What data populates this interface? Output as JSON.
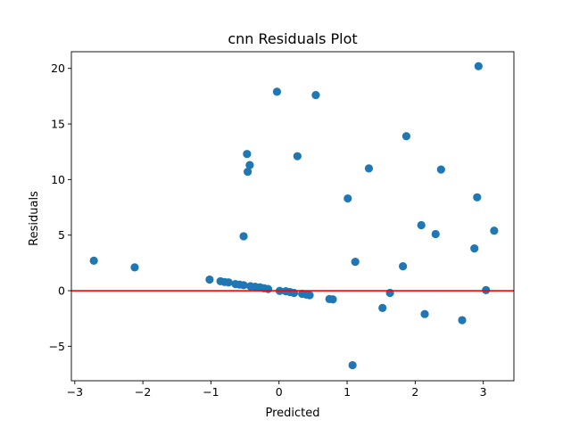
{
  "chart_data": {
    "type": "scatter",
    "title": "cnn Residuals Plot",
    "xlabel": "Predicted",
    "ylabel": "Residuals",
    "xlim": [
      -3.05,
      3.45
    ],
    "ylim": [
      -8.1,
      21.5
    ],
    "xticks": [
      -3,
      -2,
      -1,
      0,
      1,
      2,
      3
    ],
    "yticks": [
      -5,
      0,
      5,
      10,
      15,
      20
    ],
    "xtick_labels": [
      "−3",
      "−2",
      "−1",
      "0",
      "1",
      "2",
      "3"
    ],
    "ytick_labels": [
      "−5",
      "0",
      "5",
      "10",
      "15",
      "20"
    ],
    "grid": false,
    "reference_line": {
      "y": 0,
      "color": "#ff0000"
    },
    "marker_color": "#1f77b4",
    "points": [
      {
        "x": -2.72,
        "y": 2.7
      },
      {
        "x": -2.12,
        "y": 2.1
      },
      {
        "x": -1.02,
        "y": 1.0
      },
      {
        "x": -0.86,
        "y": 0.85
      },
      {
        "x": -0.8,
        "y": 0.78
      },
      {
        "x": -0.74,
        "y": 0.75
      },
      {
        "x": -0.64,
        "y": 0.6
      },
      {
        "x": -0.58,
        "y": 0.55
      },
      {
        "x": -0.52,
        "y": 0.5
      },
      {
        "x": -0.52,
        "y": 4.9
      },
      {
        "x": -0.47,
        "y": 12.3
      },
      {
        "x": -0.46,
        "y": 10.7
      },
      {
        "x": -0.43,
        "y": 11.3
      },
      {
        "x": -0.42,
        "y": 0.4
      },
      {
        "x": -0.35,
        "y": 0.35
      },
      {
        "x": -0.28,
        "y": 0.3
      },
      {
        "x": -0.22,
        "y": 0.22
      },
      {
        "x": -0.16,
        "y": 0.15
      },
      {
        "x": -0.03,
        "y": 17.9
      },
      {
        "x": 0.01,
        "y": -0.02
      },
      {
        "x": 0.1,
        "y": -0.05
      },
      {
        "x": 0.16,
        "y": -0.12
      },
      {
        "x": 0.22,
        "y": -0.2
      },
      {
        "x": 0.27,
        "y": 12.1
      },
      {
        "x": 0.34,
        "y": -0.28
      },
      {
        "x": 0.4,
        "y": -0.35
      },
      {
        "x": 0.45,
        "y": -0.4
      },
      {
        "x": 0.54,
        "y": 17.6
      },
      {
        "x": 0.74,
        "y": -0.75
      },
      {
        "x": 0.79,
        "y": -0.78
      },
      {
        "x": 1.01,
        "y": 8.3
      },
      {
        "x": 1.08,
        "y": -6.7
      },
      {
        "x": 1.12,
        "y": 2.6
      },
      {
        "x": 1.32,
        "y": 11.0
      },
      {
        "x": 1.52,
        "y": -1.55
      },
      {
        "x": 1.63,
        "y": -0.2
      },
      {
        "x": 1.82,
        "y": 2.2
      },
      {
        "x": 1.87,
        "y": 13.9
      },
      {
        "x": 2.09,
        "y": 5.9
      },
      {
        "x": 2.14,
        "y": -2.1
      },
      {
        "x": 2.3,
        "y": 5.1
      },
      {
        "x": 2.38,
        "y": 10.9
      },
      {
        "x": 2.69,
        "y": -2.65
      },
      {
        "x": 2.87,
        "y": 3.8
      },
      {
        "x": 2.91,
        "y": 8.4
      },
      {
        "x": 2.93,
        "y": 20.2
      },
      {
        "x": 3.04,
        "y": 0.05
      },
      {
        "x": 3.16,
        "y": 5.4
      }
    ]
  }
}
